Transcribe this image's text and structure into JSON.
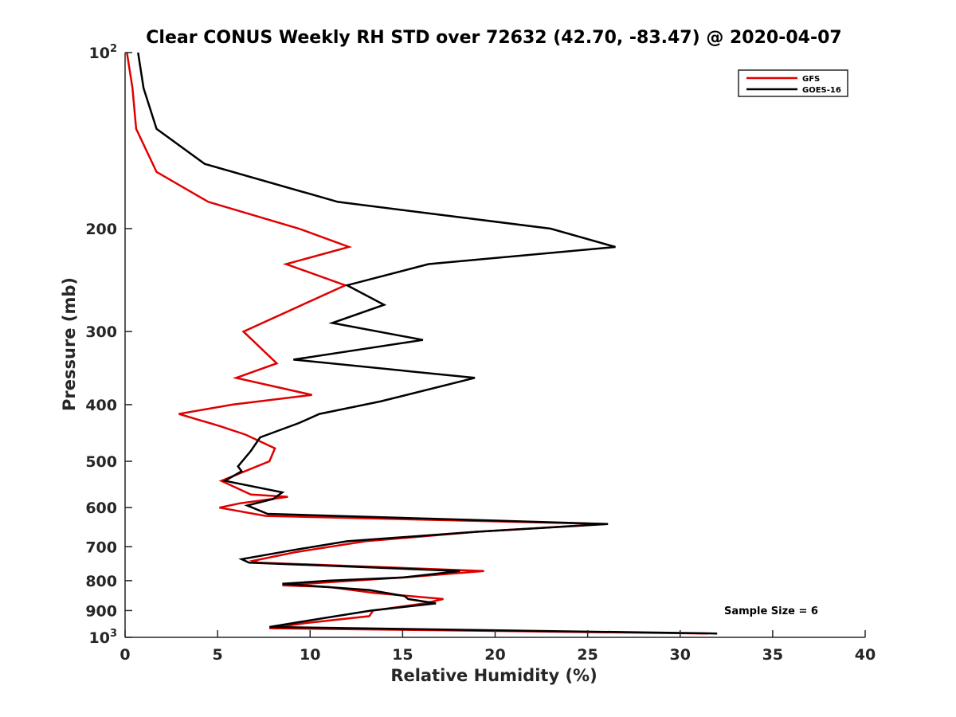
{
  "chart_data": {
    "type": "line",
    "title": "Clear CONUS Weekly RH STD over 72632 (42.70, -83.47) @ 2020-04-07",
    "xlabel": "Relative Humidity (%)",
    "ylabel": "Pressure (mb)",
    "xlim": [
      0,
      40
    ],
    "ylim": [
      1000,
      100
    ],
    "yscale": "log",
    "y_reversed": true,
    "grid": false,
    "legend_position": "top-right",
    "x_ticks": [
      0,
      5,
      10,
      15,
      20,
      25,
      30,
      35,
      40
    ],
    "x_tick_labels": [
      "0",
      "5",
      "10",
      "15",
      "20",
      "25",
      "30",
      "35",
      "40"
    ],
    "y_ticks": [
      100,
      200,
      300,
      400,
      500,
      600,
      700,
      800,
      900,
      1000
    ],
    "y_tick_labels": [
      {
        "base": "10",
        "sup": "2"
      },
      {
        "base": "200",
        "sup": ""
      },
      {
        "base": "300",
        "sup": ""
      },
      {
        "base": "400",
        "sup": ""
      },
      {
        "base": "500",
        "sup": ""
      },
      {
        "base": "600",
        "sup": ""
      },
      {
        "base": "700",
        "sup": ""
      },
      {
        "base": "800",
        "sup": ""
      },
      {
        "base": "900",
        "sup": ""
      },
      {
        "base": "10",
        "sup": "3"
      }
    ],
    "annotation": "Sample Size = 6",
    "series": [
      {
        "name": "GFS",
        "color": "#e00000",
        "points": [
          [
            0.1,
            100
          ],
          [
            0.4,
            115
          ],
          [
            0.6,
            135
          ],
          [
            1.7,
            160
          ],
          [
            4.5,
            180
          ],
          [
            9.4,
            200
          ],
          [
            12.1,
            215
          ],
          [
            8.7,
            230
          ],
          [
            11.9,
            250
          ],
          [
            6.4,
            300
          ],
          [
            8.2,
            340
          ],
          [
            6.0,
            360
          ],
          [
            10.1,
            385
          ],
          [
            5.8,
            400
          ],
          [
            2.9,
            415
          ],
          [
            5.1,
            435
          ],
          [
            6.5,
            450
          ],
          [
            8.1,
            475
          ],
          [
            7.8,
            500
          ],
          [
            5.2,
            540
          ],
          [
            6.8,
            570
          ],
          [
            8.8,
            575
          ],
          [
            6.2,
            590
          ],
          [
            5.1,
            600
          ],
          [
            7.6,
            620
          ],
          [
            26.0,
            640
          ],
          [
            19.0,
            660
          ],
          [
            13.0,
            685
          ],
          [
            9.2,
            715
          ],
          [
            6.9,
            740
          ],
          [
            7.2,
            745
          ],
          [
            19.4,
            770
          ],
          [
            15.0,
            790
          ],
          [
            11.0,
            805
          ],
          [
            8.5,
            815
          ],
          [
            11.0,
            820
          ],
          [
            13.5,
            840
          ],
          [
            17.2,
            860
          ],
          [
            16.2,
            875
          ],
          [
            13.4,
            900
          ],
          [
            13.2,
            920
          ],
          [
            9.8,
            945
          ],
          [
            7.8,
            965
          ],
          [
            31.5,
            985
          ]
        ]
      },
      {
        "name": "GOES-16",
        "color": "#000000",
        "points": [
          [
            0.7,
            100
          ],
          [
            1.0,
            115
          ],
          [
            1.7,
            135
          ],
          [
            4.3,
            155
          ],
          [
            11.5,
            180
          ],
          [
            23.0,
            200
          ],
          [
            26.5,
            215
          ],
          [
            16.4,
            230
          ],
          [
            12.0,
            250
          ],
          [
            14.0,
            270
          ],
          [
            11.2,
            290
          ],
          [
            16.1,
            310
          ],
          [
            9.1,
            335
          ],
          [
            18.9,
            360
          ],
          [
            13.8,
            395
          ],
          [
            10.5,
            415
          ],
          [
            9.4,
            430
          ],
          [
            7.3,
            455
          ],
          [
            6.8,
            480
          ],
          [
            6.1,
            510
          ],
          [
            6.3,
            520
          ],
          [
            5.4,
            540
          ],
          [
            8.5,
            565
          ],
          [
            8.0,
            580
          ],
          [
            6.6,
            595
          ],
          [
            7.7,
            615
          ],
          [
            26.1,
            640
          ],
          [
            19.0,
            660
          ],
          [
            12.0,
            685
          ],
          [
            9.0,
            710
          ],
          [
            6.3,
            735
          ],
          [
            6.7,
            745
          ],
          [
            18.1,
            770
          ],
          [
            15.0,
            790
          ],
          [
            11.0,
            800
          ],
          [
            8.5,
            810
          ],
          [
            13.2,
            830
          ],
          [
            15.1,
            850
          ],
          [
            15.3,
            860
          ],
          [
            16.8,
            875
          ],
          [
            13.3,
            900
          ],
          [
            10.0,
            935
          ],
          [
            7.8,
            960
          ],
          [
            32.0,
            985
          ]
        ]
      }
    ]
  }
}
